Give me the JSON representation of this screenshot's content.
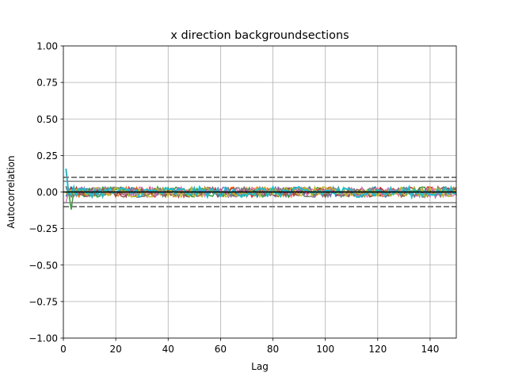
{
  "chart_data": {
    "type": "line",
    "title": "x direction backgroundsections",
    "xlabel": "Lag",
    "ylabel": "Autocorrelation",
    "xlim": [
      0,
      150
    ],
    "ylim": [
      -1.0,
      1.0
    ],
    "grid": true,
    "x_ticks": [
      0,
      20,
      40,
      60,
      80,
      100,
      120,
      140
    ],
    "x_tick_labels": [
      "0",
      "20",
      "40",
      "60",
      "80",
      "100",
      "120",
      "140"
    ],
    "y_ticks": [
      -1.0,
      -0.75,
      -0.5,
      -0.25,
      0.0,
      0.25,
      0.5,
      0.75,
      1.0
    ],
    "y_tick_labels": [
      "−1.00",
      "−0.75",
      "−0.50",
      "−0.25",
      "0.00",
      "0.25",
      "0.50",
      "0.75",
      "1.00"
    ],
    "reference_lines": [
      {
        "y": 0.0,
        "color": "#000000",
        "style": "solid"
      },
      {
        "y": 0.1,
        "color": "#808080",
        "style": "dashed"
      },
      {
        "y": 0.073,
        "color": "#808080",
        "style": "solid"
      },
      {
        "y": -0.073,
        "color": "#808080",
        "style": "solid"
      },
      {
        "y": -0.1,
        "color": "#808080",
        "style": "dashed"
      }
    ],
    "series_colors": [
      "#1f77b4",
      "#ff7f0e",
      "#2ca02c",
      "#d62728",
      "#9467bd",
      "#8c564b",
      "#e377c2",
      "#7f7f7f",
      "#bcbd22",
      "#17becf"
    ],
    "lag_range": [
      1,
      150
    ],
    "series_amplitude": 0.035,
    "peak_values": {
      "max": 0.16,
      "min": -0.12
    }
  }
}
